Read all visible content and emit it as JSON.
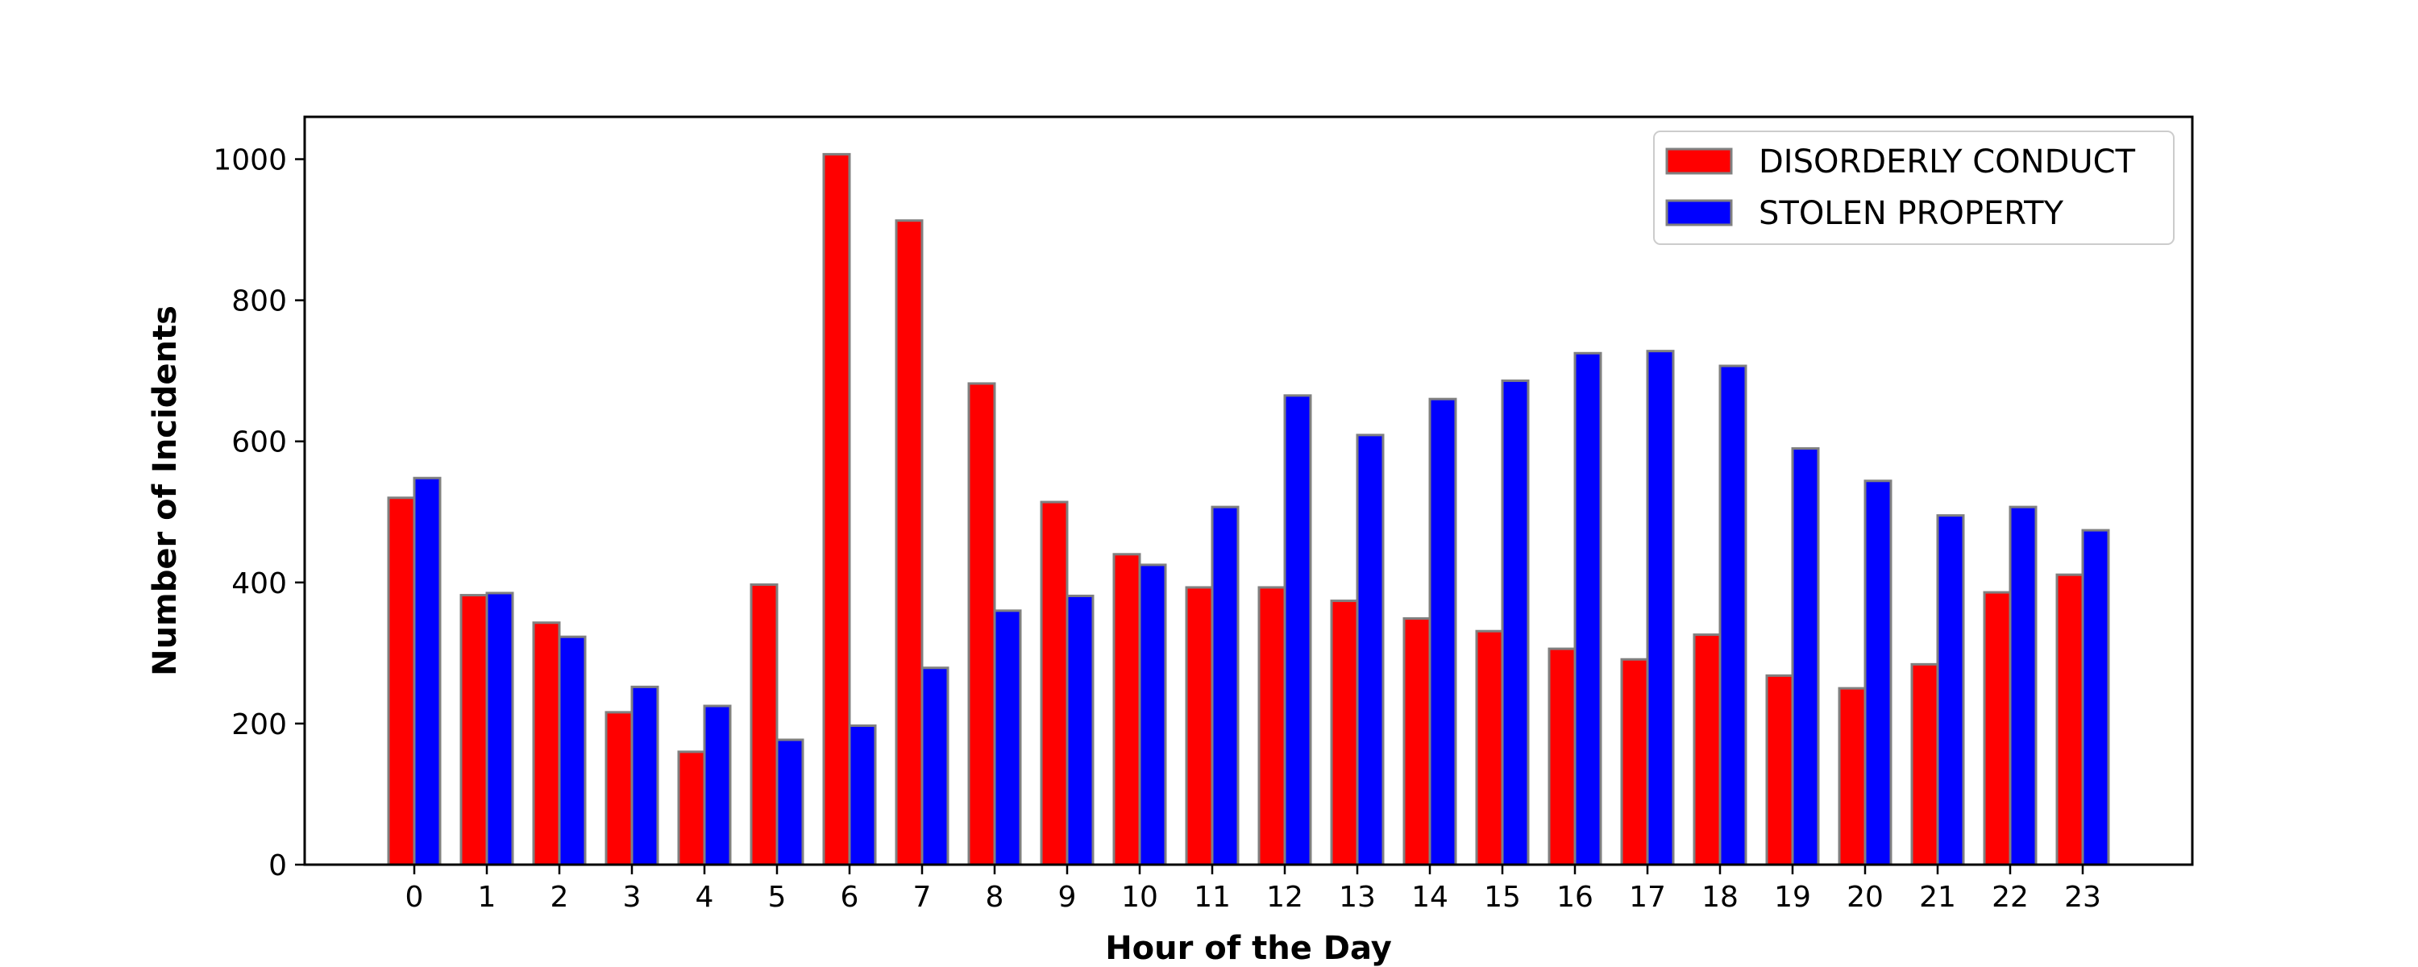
{
  "chart_data": {
    "type": "bar",
    "title": "",
    "xlabel": "Hour of the Day",
    "ylabel": "Number of Incidents",
    "categories": [
      "0",
      "1",
      "2",
      "3",
      "4",
      "5",
      "6",
      "7",
      "8",
      "9",
      "10",
      "11",
      "12",
      "13",
      "14",
      "15",
      "16",
      "17",
      "18",
      "19",
      "20",
      "21",
      "22",
      "23"
    ],
    "series": [
      {
        "name": "DISORDERLY CONDUCT",
        "color": "#ff0000",
        "values": [
          520,
          382,
          343,
          216,
          160,
          397,
          1007,
          913,
          682,
          514,
          440,
          393,
          393,
          374,
          349,
          331,
          306,
          291,
          326,
          268,
          250,
          284,
          386,
          411
        ]
      },
      {
        "name": "STOLEN PROPERTY",
        "color": "#0000ff",
        "values": [
          548,
          385,
          323,
          252,
          225,
          177,
          197,
          279,
          360,
          381,
          425,
          507,
          665,
          609,
          660,
          686,
          725,
          728,
          707,
          590,
          544,
          495,
          507,
          474
        ]
      }
    ],
    "ylim": [
      0,
      1060
    ],
    "yticks": [
      0,
      200,
      400,
      600,
      800,
      1000
    ],
    "bar_edge_color": "#808080",
    "grid": false,
    "legend_position": "upper right"
  }
}
